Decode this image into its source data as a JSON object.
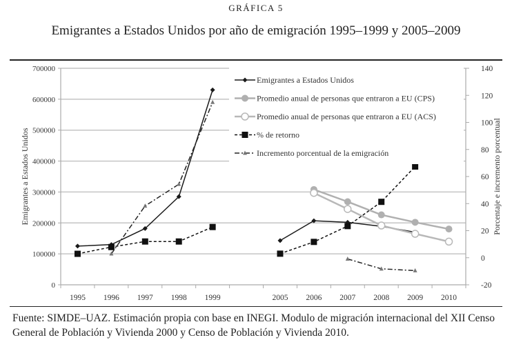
{
  "header": {
    "kicker": "GRÁFICA 5",
    "title": "Emigrantes a Estados Unidos por año de emigración 1995–1999 y 2005–2009"
  },
  "footer": {
    "source": "Fuente: SIMDE–UAZ. Estimación propia con base en INEGI. Modulo de migración internacional del XII Censo General de Población y Vivienda 2000 y Censo de Población y Vivienda 2010."
  },
  "chart_data": {
    "type": "line",
    "title": "Emigrantes a Estados Unidos por año de emigración 1995–1999 y 2005–2009",
    "categories": [
      "1995",
      "1996",
      "1997",
      "1998",
      "1999",
      "",
      "2005",
      "2006",
      "2007",
      "2008",
      "2009",
      "2010"
    ],
    "ylabel": "Emigrantes a Estados Unidos",
    "y2label": "Porcentaje e incremento porcentual",
    "ylim": [
      0,
      700000
    ],
    "y2lim": [
      -20,
      140
    ],
    "yticks": [
      "0",
      "100000",
      "200000",
      "300000",
      "400000",
      "500000",
      "600000",
      "700000"
    ],
    "y2ticks": [
      "-20",
      "0",
      "20",
      "40",
      "60",
      "80",
      "100",
      "120",
      "140"
    ],
    "grid": true,
    "legend_position": "top-right",
    "series": [
      {
        "name": "Emigrantes a Estados Unidos",
        "axis": "left",
        "color": "#1a1a1a",
        "marker": "diamond",
        "dash": "solid",
        "values": [
          125000,
          130000,
          182000,
          285000,
          630000,
          null,
          143000,
          207000,
          202000,
          189000,
          170000,
          null
        ]
      },
      {
        "name": "Promedio anual de personas que entraron a EU (CPS)",
        "axis": "right",
        "color": "#b0b0b0",
        "marker": "filled-circle",
        "dash": "solid",
        "values": [
          null,
          null,
          null,
          null,
          null,
          null,
          null,
          50.4,
          41.4,
          31.7,
          26.2,
          21.2
        ]
      },
      {
        "name": "Promedio anual de personas que entraron a EU (ACS)",
        "axis": "right",
        "color": "#b8b8b8",
        "marker": "open-circle",
        "dash": "solid",
        "values": [
          null,
          null,
          null,
          null,
          null,
          null,
          null,
          47.9,
          36,
          23.8,
          17.7,
          11.9
        ]
      },
      {
        "name": "% de retorno",
        "axis": "right",
        "color": "#111111",
        "marker": "square",
        "dash": "dashed",
        "values": [
          2.9,
          7.9,
          12,
          12,
          22.7,
          null,
          3,
          11.7,
          23.4,
          41.3,
          67.4,
          null
        ]
      },
      {
        "name": "Incremento porcentual de la emigración",
        "axis": "right",
        "color": "#222222",
        "marker": "triangle",
        "dash": "dashdot",
        "values": [
          null,
          2.9,
          38.3,
          54.3,
          114.9,
          null,
          null,
          null,
          -0.9,
          -8.2,
          -9.5,
          null
        ]
      }
    ]
  }
}
